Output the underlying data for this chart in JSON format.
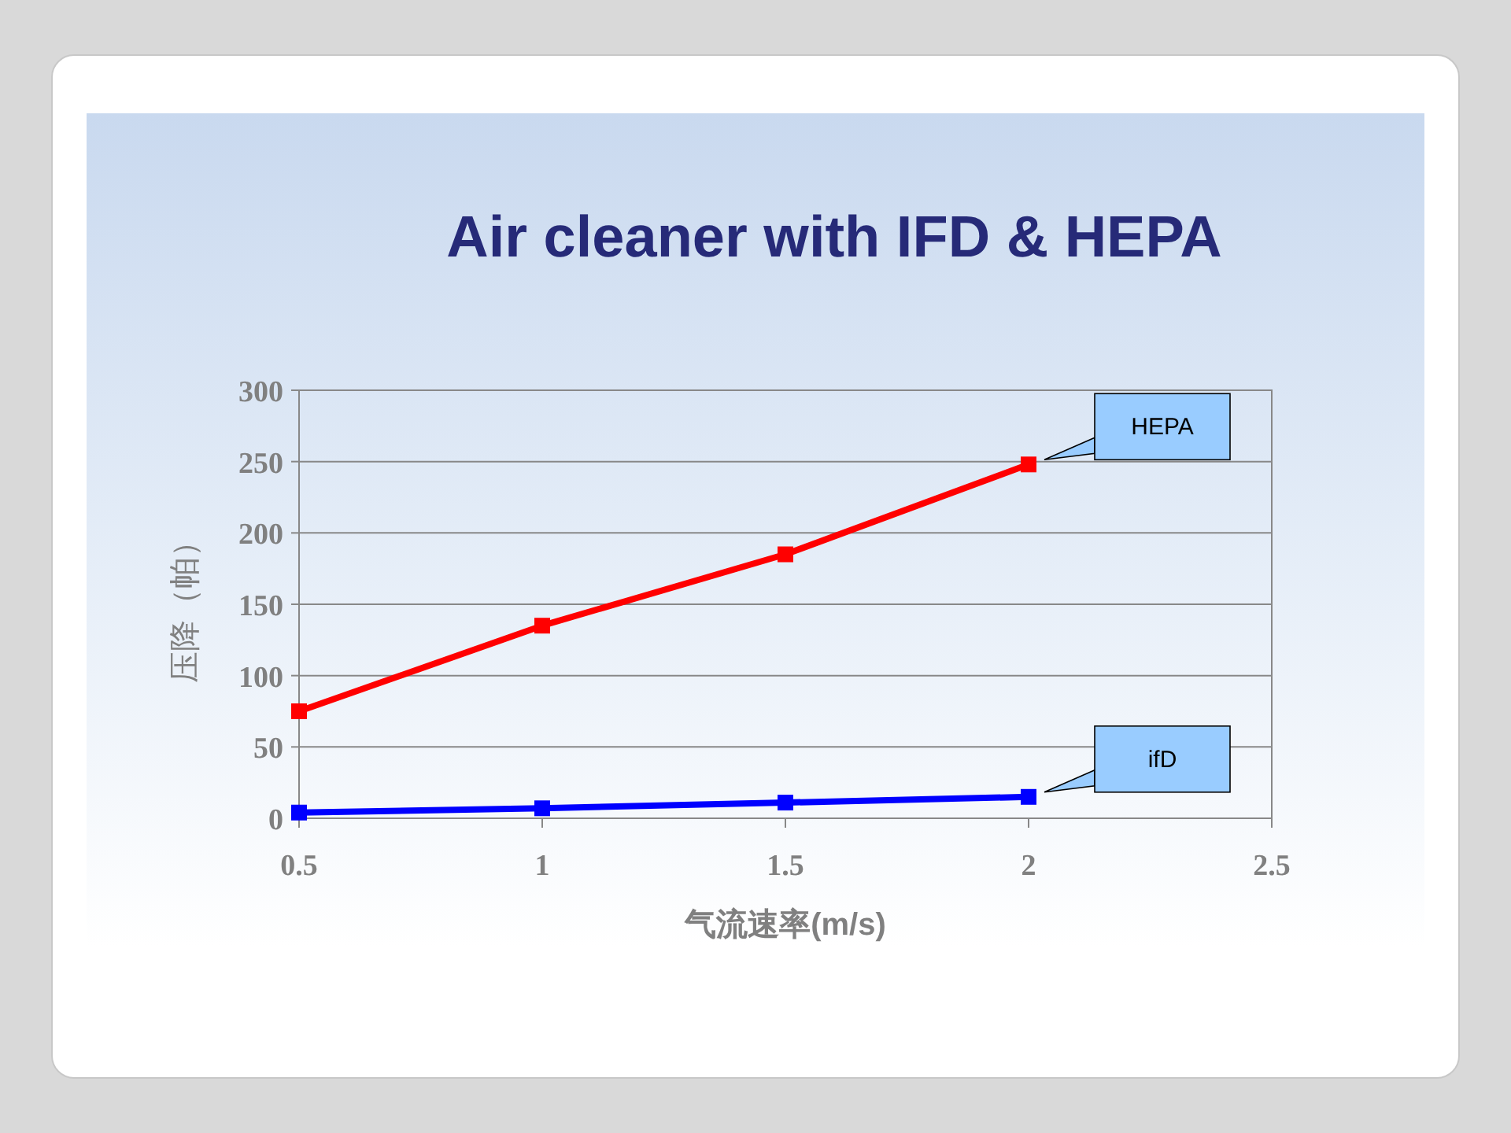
{
  "chart_data": {
    "type": "line",
    "title": "Air cleaner with IFD & HEPA",
    "xlabel": "气流速率(m/s)",
    "ylabel": "压降（帕）",
    "x": [
      0.5,
      1,
      1.5,
      2
    ],
    "series": [
      {
        "name": "HEPA",
        "color": "#ff0000",
        "values": [
          75,
          135,
          185,
          248
        ]
      },
      {
        "name": "ifD",
        "color": "#0000ff",
        "values": [
          4,
          7,
          11,
          15
        ]
      }
    ],
    "xlim": [
      0.5,
      2.5
    ],
    "xticks": [
      0.5,
      1,
      1.5,
      2,
      2.5
    ],
    "ylim": [
      0,
      300
    ],
    "yticks": [
      0,
      50,
      100,
      150,
      200,
      250,
      300
    ],
    "grid": "y",
    "marker": "square",
    "line_style": "solid"
  }
}
